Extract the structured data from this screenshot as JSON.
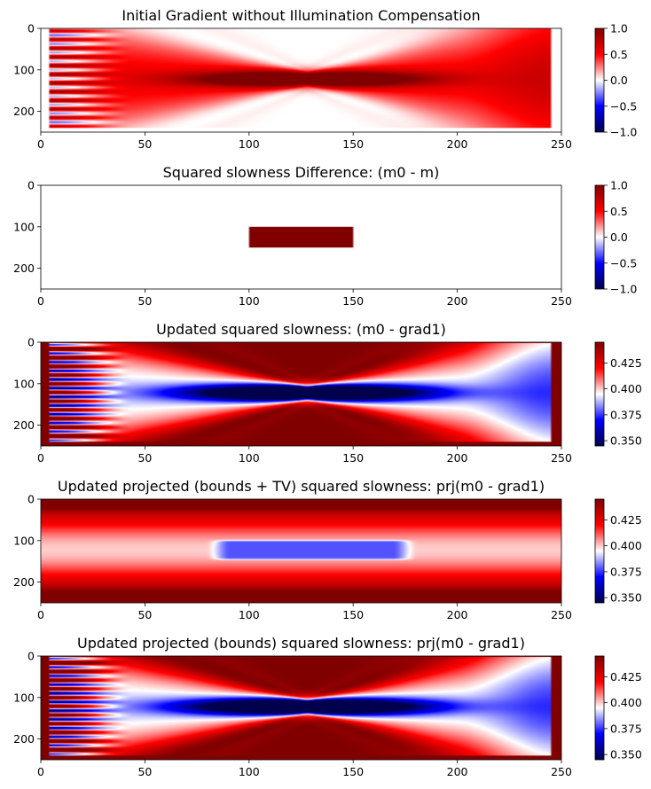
{
  "chart_data": [
    {
      "type": "heatmap",
      "title": "Initial Gradient without Illumination Compensation",
      "field": "gradient",
      "x_ticks": [
        0,
        50,
        100,
        150,
        200,
        250
      ],
      "y_ticks": [
        0,
        100,
        200
      ],
      "x_range": [
        0,
        250
      ],
      "y_range": [
        0,
        250
      ],
      "y_inverted": true,
      "colormap": "seismic",
      "colorbar": {
        "min": -1.0,
        "max": 1.0,
        "ticks": [
          "1.0",
          "0.5",
          "0.0",
          "−0.5",
          "−1.0"
        ],
        "tick_values": [
          1.0,
          0.5,
          0.0,
          -0.5,
          -1.0
        ]
      },
      "model_extent": {
        "x": [
          4,
          245
        ],
        "y": [
          0,
          240
        ]
      }
    },
    {
      "type": "heatmap",
      "title": "Squared slowness Difference: (m0 - m)",
      "field": "difference",
      "x_ticks": [
        0,
        50,
        100,
        150,
        200,
        250
      ],
      "y_ticks": [
        0,
        100,
        200
      ],
      "x_range": [
        0,
        250
      ],
      "y_range": [
        0,
        250
      ],
      "y_inverted": true,
      "colormap": "seismic",
      "colorbar": {
        "min": -1.0,
        "max": 1.0,
        "ticks": [
          "1.0",
          "0.5",
          "0.0",
          "−0.5",
          "−1.0"
        ],
        "tick_values": [
          1.0,
          0.5,
          0.0,
          -0.5,
          -1.0
        ]
      },
      "anomaly": {
        "x": [
          100,
          150
        ],
        "y": [
          100,
          150
        ],
        "value": 1.0
      },
      "background_value": 0.0
    },
    {
      "type": "heatmap",
      "title": "Updated squared slowness: (m0 - grad1)",
      "field": "updated",
      "x_ticks": [
        0,
        50,
        100,
        150,
        200,
        250
      ],
      "y_ticks": [
        0,
        100,
        200
      ],
      "x_range": [
        0,
        250
      ],
      "y_range": [
        0,
        250
      ],
      "y_inverted": true,
      "colormap": "seismic",
      "colorbar": {
        "min": 0.345,
        "max": 0.445,
        "ticks": [
          "0.425",
          "0.400",
          "0.375",
          "0.350"
        ],
        "tick_values": [
          0.425,
          0.4,
          0.375,
          0.35
        ]
      }
    },
    {
      "type": "heatmap",
      "title": "Updated projected (bounds + TV) squared slowness: prj(m0 - grad1)",
      "field": "tv",
      "x_ticks": [
        0,
        50,
        100,
        150,
        200,
        250
      ],
      "y_ticks": [
        0,
        100,
        200
      ],
      "x_range": [
        0,
        250
      ],
      "y_range": [
        0,
        250
      ],
      "y_inverted": true,
      "colormap": "seismic",
      "colorbar": {
        "min": 0.345,
        "max": 0.445,
        "ticks": [
          "0.425",
          "0.400",
          "0.375",
          "0.350"
        ],
        "tick_values": [
          0.425,
          0.4,
          0.375,
          0.35
        ]
      },
      "anomaly": {
        "x": [
          85,
          175
        ],
        "y": [
          100,
          145
        ],
        "value": 0.378
      }
    },
    {
      "type": "heatmap",
      "title": "Updated projected (bounds) squared slowness: prj(m0 - grad1)",
      "field": "updated",
      "x_ticks": [
        0,
        50,
        100,
        150,
        200,
        250
      ],
      "y_ticks": [
        0,
        100,
        200
      ],
      "x_range": [
        0,
        250
      ],
      "y_range": [
        0,
        250
      ],
      "y_inverted": true,
      "colormap": "seismic",
      "colorbar": {
        "min": 0.345,
        "max": 0.445,
        "ticks": [
          "0.425",
          "0.400",
          "0.375",
          "0.350"
        ],
        "tick_values": [
          0.425,
          0.4,
          0.375,
          0.35
        ]
      }
    }
  ]
}
